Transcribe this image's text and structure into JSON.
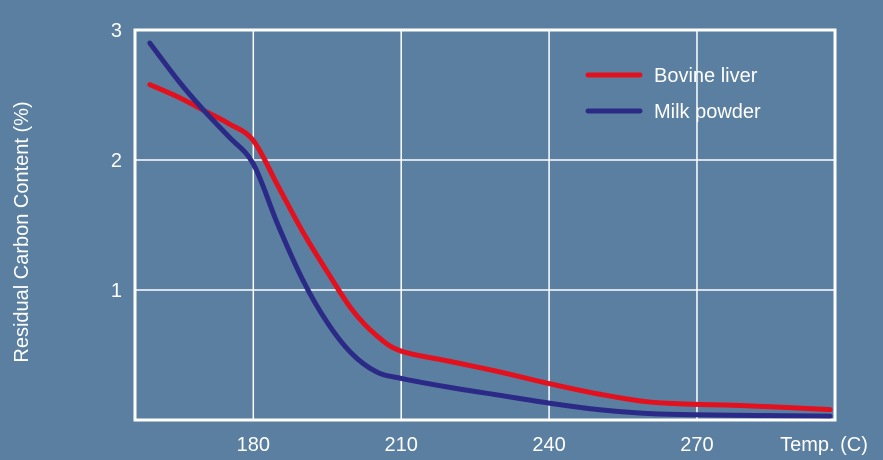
{
  "chart_data": {
    "type": "line",
    "title": "",
    "xlabel": "Temp. (C)",
    "ylabel": "Residual Carbon Content (%)",
    "xlim": [
      156,
      298
    ],
    "ylim": [
      0,
      3
    ],
    "xticks": [
      180,
      210,
      240,
      270
    ],
    "xtick_labels": [
      "180",
      "210",
      "240",
      "270"
    ],
    "yticks": [
      1,
      2,
      3
    ],
    "ytick_labels": [
      "1",
      "2",
      "3"
    ],
    "grid": true,
    "legend_position": "top-right",
    "series": [
      {
        "name": "Bovine liver",
        "color": "#e3101e",
        "x": [
          159,
          165,
          170,
          175,
          180,
          185,
          190,
          195,
          200,
          205,
          210,
          220,
          230,
          240,
          250,
          260,
          270,
          280,
          297
        ],
        "y": [
          2.58,
          2.48,
          2.38,
          2.28,
          2.15,
          1.8,
          1.45,
          1.14,
          0.85,
          0.65,
          0.53,
          0.45,
          0.37,
          0.28,
          0.2,
          0.14,
          0.12,
          0.11,
          0.08
        ]
      },
      {
        "name": "Milk powder",
        "color": "#2b2a86",
        "x": [
          159,
          165,
          170,
          175,
          180,
          185,
          190,
          195,
          200,
          205,
          210,
          220,
          230,
          240,
          250,
          260,
          270,
          280,
          297
        ],
        "y": [
          2.9,
          2.6,
          2.38,
          2.18,
          1.97,
          1.5,
          1.08,
          0.75,
          0.51,
          0.37,
          0.32,
          0.25,
          0.19,
          0.13,
          0.08,
          0.05,
          0.04,
          0.035,
          0.03
        ]
      }
    ]
  }
}
